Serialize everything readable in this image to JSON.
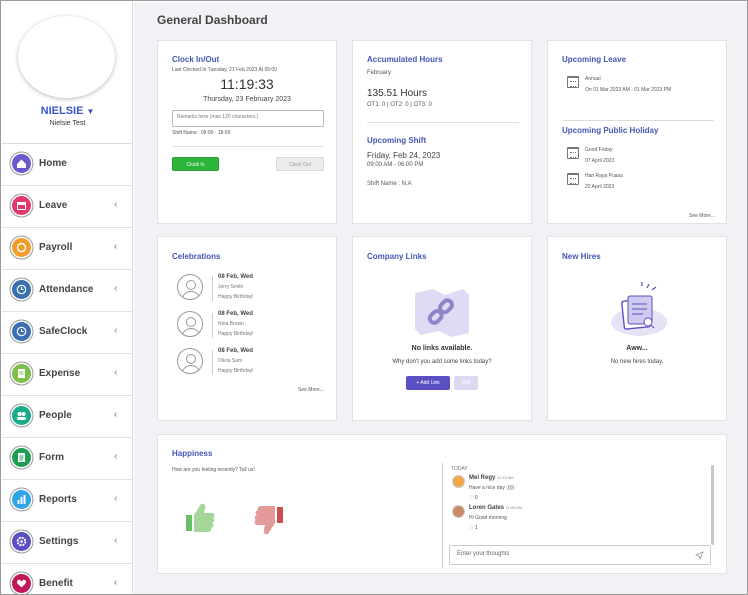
{
  "sidebar": {
    "user_name": "NIELSIE",
    "user_subtitle": "Nielsie Test",
    "items": [
      {
        "label": "Home",
        "icon": "home-icon",
        "color": "#6a5acd",
        "chevron": ""
      },
      {
        "label": "Leave",
        "icon": "calendar-icon",
        "color": "#e2386b",
        "chevron": "‹"
      },
      {
        "label": "Payroll",
        "icon": "payroll-icon",
        "color": "#f39c2b",
        "chevron": "‹"
      },
      {
        "label": "Attendance",
        "icon": "clock-icon",
        "color": "#3a6fb0",
        "chevron": "‹"
      },
      {
        "label": "SafeClock",
        "icon": "clock-icon",
        "color": "#3a6fb0",
        "chevron": "‹"
      },
      {
        "label": "Expense",
        "icon": "receipt-icon",
        "color": "#7cc04b",
        "chevron": "‹"
      },
      {
        "label": "People",
        "icon": "people-icon",
        "color": "#1aab8a",
        "chevron": "‹"
      },
      {
        "label": "Form",
        "icon": "form-icon",
        "color": "#1f9d55",
        "chevron": "‹"
      },
      {
        "label": "Reports",
        "icon": "chart-icon",
        "color": "#2fa4e7",
        "chevron": "‹"
      },
      {
        "label": "Settings",
        "icon": "gear-icon",
        "color": "#5b4fc4",
        "chevron": "‹"
      },
      {
        "label": "Benefit",
        "icon": "heart-icon",
        "color": "#c2185b",
        "chevron": "‹"
      }
    ]
  },
  "page": {
    "title": "General Dashboard"
  },
  "clock": {
    "title": "Clock In/Out",
    "last_clocked": "Last Clocked In Tuesday, 21 Feb 2023 At 05:00",
    "time": "11:19:33",
    "date": "Thursday, 23 February 2023",
    "remarks_placeholder": "Remarks here (max 120 characters.)",
    "shift_name": "Shift Name : 09:00 - 18:00",
    "clock_in": "Clock In",
    "clock_out": "Clock Out"
  },
  "hours": {
    "title": "Accumulated Hours",
    "month": "February",
    "value": "135.51 Hours",
    "ot": "OT1: 0 | OT2: 0 | OT3: 0",
    "shift_title": "Upcoming Shift",
    "shift_date": "Friday, Feb 24, 2023",
    "shift_time": "09:00 AM - 06:00 PM",
    "shift_name": "Shift Name : N.A"
  },
  "leave": {
    "title": "Upcoming Leave",
    "type": "Annual",
    "range": "On 01 Mar 2023 AM - 01 Mar 2023 PM",
    "holiday_title": "Upcoming Public Holiday",
    "holidays": [
      {
        "name": "Good Friday",
        "date": "07 April 2023"
      },
      {
        "name": "Hari Raya Puasa",
        "date": "22 April 2023"
      }
    ],
    "see_more": "See More..."
  },
  "celebrations": {
    "title": "Celebrations",
    "see_more": "See More...",
    "items": [
      {
        "date": "08 Feb, Wed",
        "name": "Jerry Smith",
        "msg": "Happy Birthday!"
      },
      {
        "date": "08 Feb, Wed",
        "name": "Nina Brown",
        "msg": "Happy Birthday!"
      },
      {
        "date": "08 Feb, Wed",
        "name": "Olivia Sam",
        "msg": "Happy Birthday!"
      }
    ]
  },
  "links": {
    "title": "Company Links",
    "empty_title": "No links available.",
    "empty_sub": "Why don't you add some links today?",
    "add": "+ Add Link",
    "edit": "Edit"
  },
  "hires": {
    "title": "New Hires",
    "empty_title": "Aww...",
    "empty_sub": "No new hires today."
  },
  "happiness": {
    "title": "Happiness",
    "question": "How are you feeling recently? Tell us!",
    "today": "TODAY",
    "messages": [
      {
        "name": "Mel Regy",
        "time": "11:15 AM",
        "text": "Have a nice day :))))",
        "likes": "0"
      },
      {
        "name": "Loren Gates",
        "time": "11:09 AM",
        "text": "Hi Good morning",
        "likes": "1"
      }
    ],
    "input_placeholder": "Enter your thoughts"
  }
}
